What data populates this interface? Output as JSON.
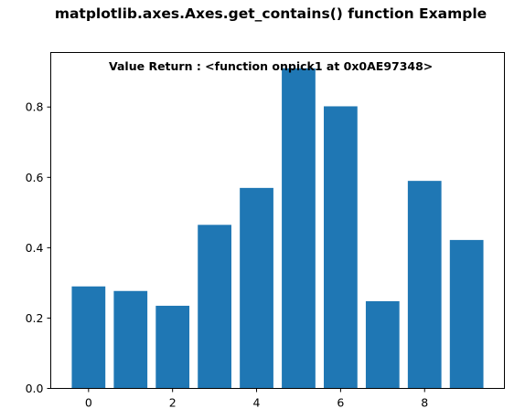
{
  "figure": {
    "suptitle": "matplotlib.axes.Axes.get_contains() function Example",
    "background": "#ffffff"
  },
  "chart_data": {
    "type": "bar",
    "title": "",
    "xlabel": "",
    "ylabel": "",
    "annotation": "Value Return : <function onpick1 at 0x0AE97348>",
    "x": [
      0,
      1,
      2,
      3,
      4,
      5,
      6,
      7,
      8,
      9
    ],
    "values": [
      0.29,
      0.277,
      0.235,
      0.465,
      0.57,
      0.91,
      0.802,
      0.248,
      0.59,
      0.422
    ],
    "bar_color": "#1f77b4",
    "bar_width": 0.8,
    "xlim": [
      -0.9,
      9.9
    ],
    "ylim": [
      0,
      0.955
    ],
    "xticks": [
      0,
      2,
      4,
      6,
      8
    ],
    "xtick_labels": [
      "0",
      "2",
      "4",
      "6",
      "8"
    ],
    "yticks": [
      0.0,
      0.2,
      0.4,
      0.6,
      0.8
    ],
    "ytick_labels": [
      "0.0",
      "0.2",
      "0.4",
      "0.6",
      "0.8"
    ],
    "grid": false,
    "legend": "none"
  }
}
